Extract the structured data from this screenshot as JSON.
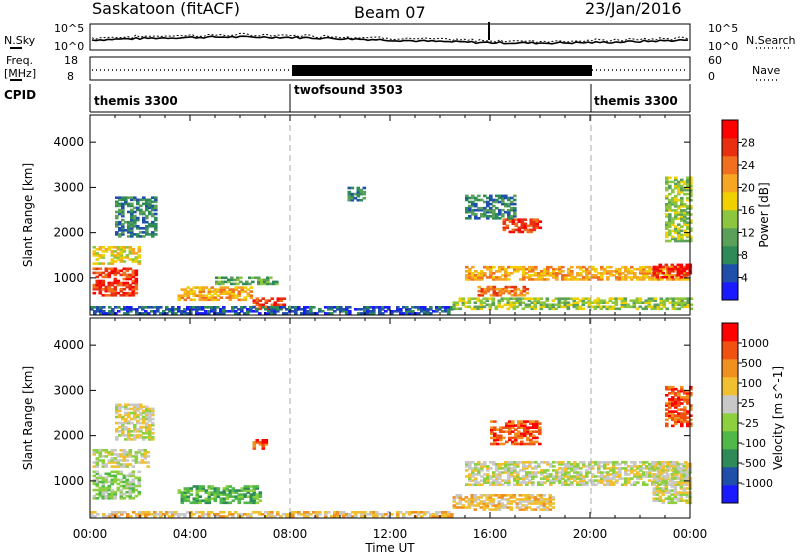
{
  "header": {
    "station": "Saskatoon (fitACF)",
    "beam": "Beam 07",
    "date": "23/Jan/2016"
  },
  "noise_panel": {
    "left_label": "N.Sky",
    "left_ticks": [
      "10^5",
      "10^0"
    ],
    "right_ticks": [
      "10^5",
      "10^0"
    ],
    "right_label": "N.Search"
  },
  "freq_panel": {
    "left_label_1": "Freq.",
    "left_label_2": "[MHz]",
    "left_ticks": [
      "18",
      "8"
    ],
    "right_ticks": [
      "60",
      "0"
    ],
    "right_label": "Nave"
  },
  "cpid_panel": {
    "label": "CPID",
    "modes": [
      {
        "name": "themis 3300",
        "start_hour": 0
      },
      {
        "name": "twofsound 3503",
        "start_hour": 8
      },
      {
        "name": "themis 3300",
        "start_hour": 20
      }
    ]
  },
  "x_axis": {
    "ticks": [
      "00:00",
      "04:00",
      "08:00",
      "12:00",
      "16:00",
      "20:00",
      "00:00"
    ],
    "label": "Time UT"
  },
  "chart_data": [
    {
      "type": "heatmap",
      "ylabel": "Slant Range [km]",
      "yticks": [
        1000,
        2000,
        3000,
        4000
      ],
      "ylim": [
        180,
        4600
      ],
      "xlim_hours": [
        0,
        24
      ],
      "colorbar": {
        "label": "Power [dB]",
        "ticks": [
          "28",
          "24",
          "20",
          "16",
          "12",
          "8",
          "4"
        ],
        "colors": [
          "#1a1aff",
          "#1f4fa8",
          "#2e8b57",
          "#5aa05a",
          "#8cc63f",
          "#f0d000",
          "#f5a623",
          "#f07020",
          "#e83010",
          "#ff0000"
        ]
      },
      "regions": [
        {
          "t0": 0.1,
          "t1": 2.0,
          "r0": 1300,
          "r1": 1700,
          "level": 5
        },
        {
          "t0": 0.1,
          "t1": 1.8,
          "r0": 600,
          "r1": 1200,
          "level": 8
        },
        {
          "t0": 1.0,
          "t1": 2.6,
          "r0": 1900,
          "r1": 2800,
          "level": 2
        },
        {
          "t0": 3.5,
          "t1": 6.5,
          "r0": 500,
          "r1": 800,
          "level": 6
        },
        {
          "t0": 5.0,
          "t1": 7.5,
          "r0": 850,
          "r1": 1000,
          "level": 3
        },
        {
          "t0": 6.5,
          "t1": 7.8,
          "r0": 300,
          "r1": 550,
          "level": 8
        },
        {
          "t0": 0.0,
          "t1": 14.5,
          "r0": 200,
          "r1": 350,
          "level": 1
        },
        {
          "t0": 10.3,
          "t1": 11.0,
          "r0": 2700,
          "r1": 3000,
          "level": 2
        },
        {
          "t0": 14.5,
          "t1": 24.0,
          "r0": 300,
          "r1": 550,
          "level": 4
        },
        {
          "t0": 15.0,
          "t1": 24.0,
          "r0": 950,
          "r1": 1250,
          "level": 6
        },
        {
          "t0": 15.5,
          "t1": 17.5,
          "r0": 600,
          "r1": 800,
          "level": 7
        },
        {
          "t0": 16.5,
          "t1": 18.0,
          "r0": 2000,
          "r1": 2300,
          "level": 8
        },
        {
          "t0": 15.0,
          "t1": 17.0,
          "r0": 2300,
          "r1": 2800,
          "level": 2
        },
        {
          "t0": 22.5,
          "t1": 24.0,
          "r0": 1000,
          "r1": 1300,
          "level": 9
        },
        {
          "t0": 23.0,
          "t1": 24.0,
          "r0": 1800,
          "r1": 3200,
          "level": 4
        }
      ]
    },
    {
      "type": "heatmap",
      "ylabel": "Slant Range [km]",
      "yticks": [
        1000,
        2000,
        3000,
        4000
      ],
      "ylim": [
        180,
        4600
      ],
      "xlim_hours": [
        0,
        24
      ],
      "colorbar": {
        "label": "Velocity [m s^-1]",
        "ticks": [
          "1000",
          "500",
          "100",
          "25",
          "-25",
          "-100",
          "-500",
          "-1000"
        ],
        "colors": [
          "#1a1aff",
          "#1f4fa8",
          "#2e8b57",
          "#4fb848",
          "#8cd040",
          "#c8c8c8",
          "#f0c030",
          "#f09020",
          "#f05010",
          "#ff0000"
        ]
      },
      "regions": [
        {
          "t0": 0.1,
          "t1": 2.3,
          "r0": 1300,
          "r1": 1700,
          "level": 5
        },
        {
          "t0": 0.1,
          "t1": 2.0,
          "r0": 600,
          "r1": 1200,
          "level": 4
        },
        {
          "t0": 1.0,
          "t1": 2.5,
          "r0": 1900,
          "r1": 2700,
          "level": 5
        },
        {
          "t0": 3.5,
          "t1": 6.8,
          "r0": 500,
          "r1": 900,
          "level": 3
        },
        {
          "t0": 6.5,
          "t1": 7.0,
          "r0": 1700,
          "r1": 1900,
          "level": 8
        },
        {
          "t0": 0.0,
          "t1": 14.5,
          "r0": 200,
          "r1": 320,
          "level": 6
        },
        {
          "t0": 14.5,
          "t1": 18.5,
          "r0": 350,
          "r1": 700,
          "level": 6
        },
        {
          "t0": 15.0,
          "t1": 24.0,
          "r0": 900,
          "r1": 1400,
          "level": 5
        },
        {
          "t0": 16.0,
          "t1": 18.0,
          "r0": 1800,
          "r1": 2300,
          "level": 8
        },
        {
          "t0": 22.5,
          "t1": 24.0,
          "r0": 500,
          "r1": 1400,
          "level": 5
        },
        {
          "t0": 23.0,
          "t1": 24.0,
          "r0": 2200,
          "r1": 3100,
          "level": 8
        }
      ]
    }
  ]
}
